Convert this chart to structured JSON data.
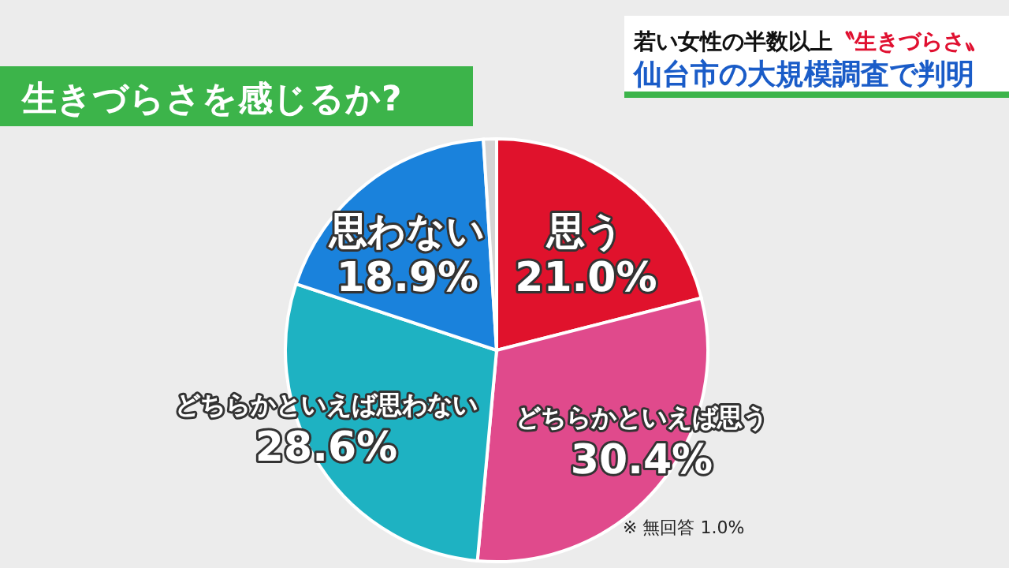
{
  "chart_data": {
    "type": "pie",
    "title": "生きづらさを感じるか?",
    "categories": [
      "思う",
      "どちらかといえば思う",
      "どちらかといえば思わない",
      "思わない",
      null
    ],
    "values": [
      21.0,
      30.4,
      28.6,
      18.9,
      1.0
    ],
    "colors": [
      "#e0122c",
      "#e04a8c",
      "#1eb2c2",
      "#1a82dc",
      "#d4d4d4"
    ],
    "value_labels": [
      "21.0%",
      "30.4%",
      "28.6%",
      "18.9%",
      null
    ],
    "annotations": [
      "若い女性の半数以上",
      "〝生きづらさ〟",
      "仙台市の大規模調査で判明",
      "※ 無回答 1.0%"
    ]
  }
}
